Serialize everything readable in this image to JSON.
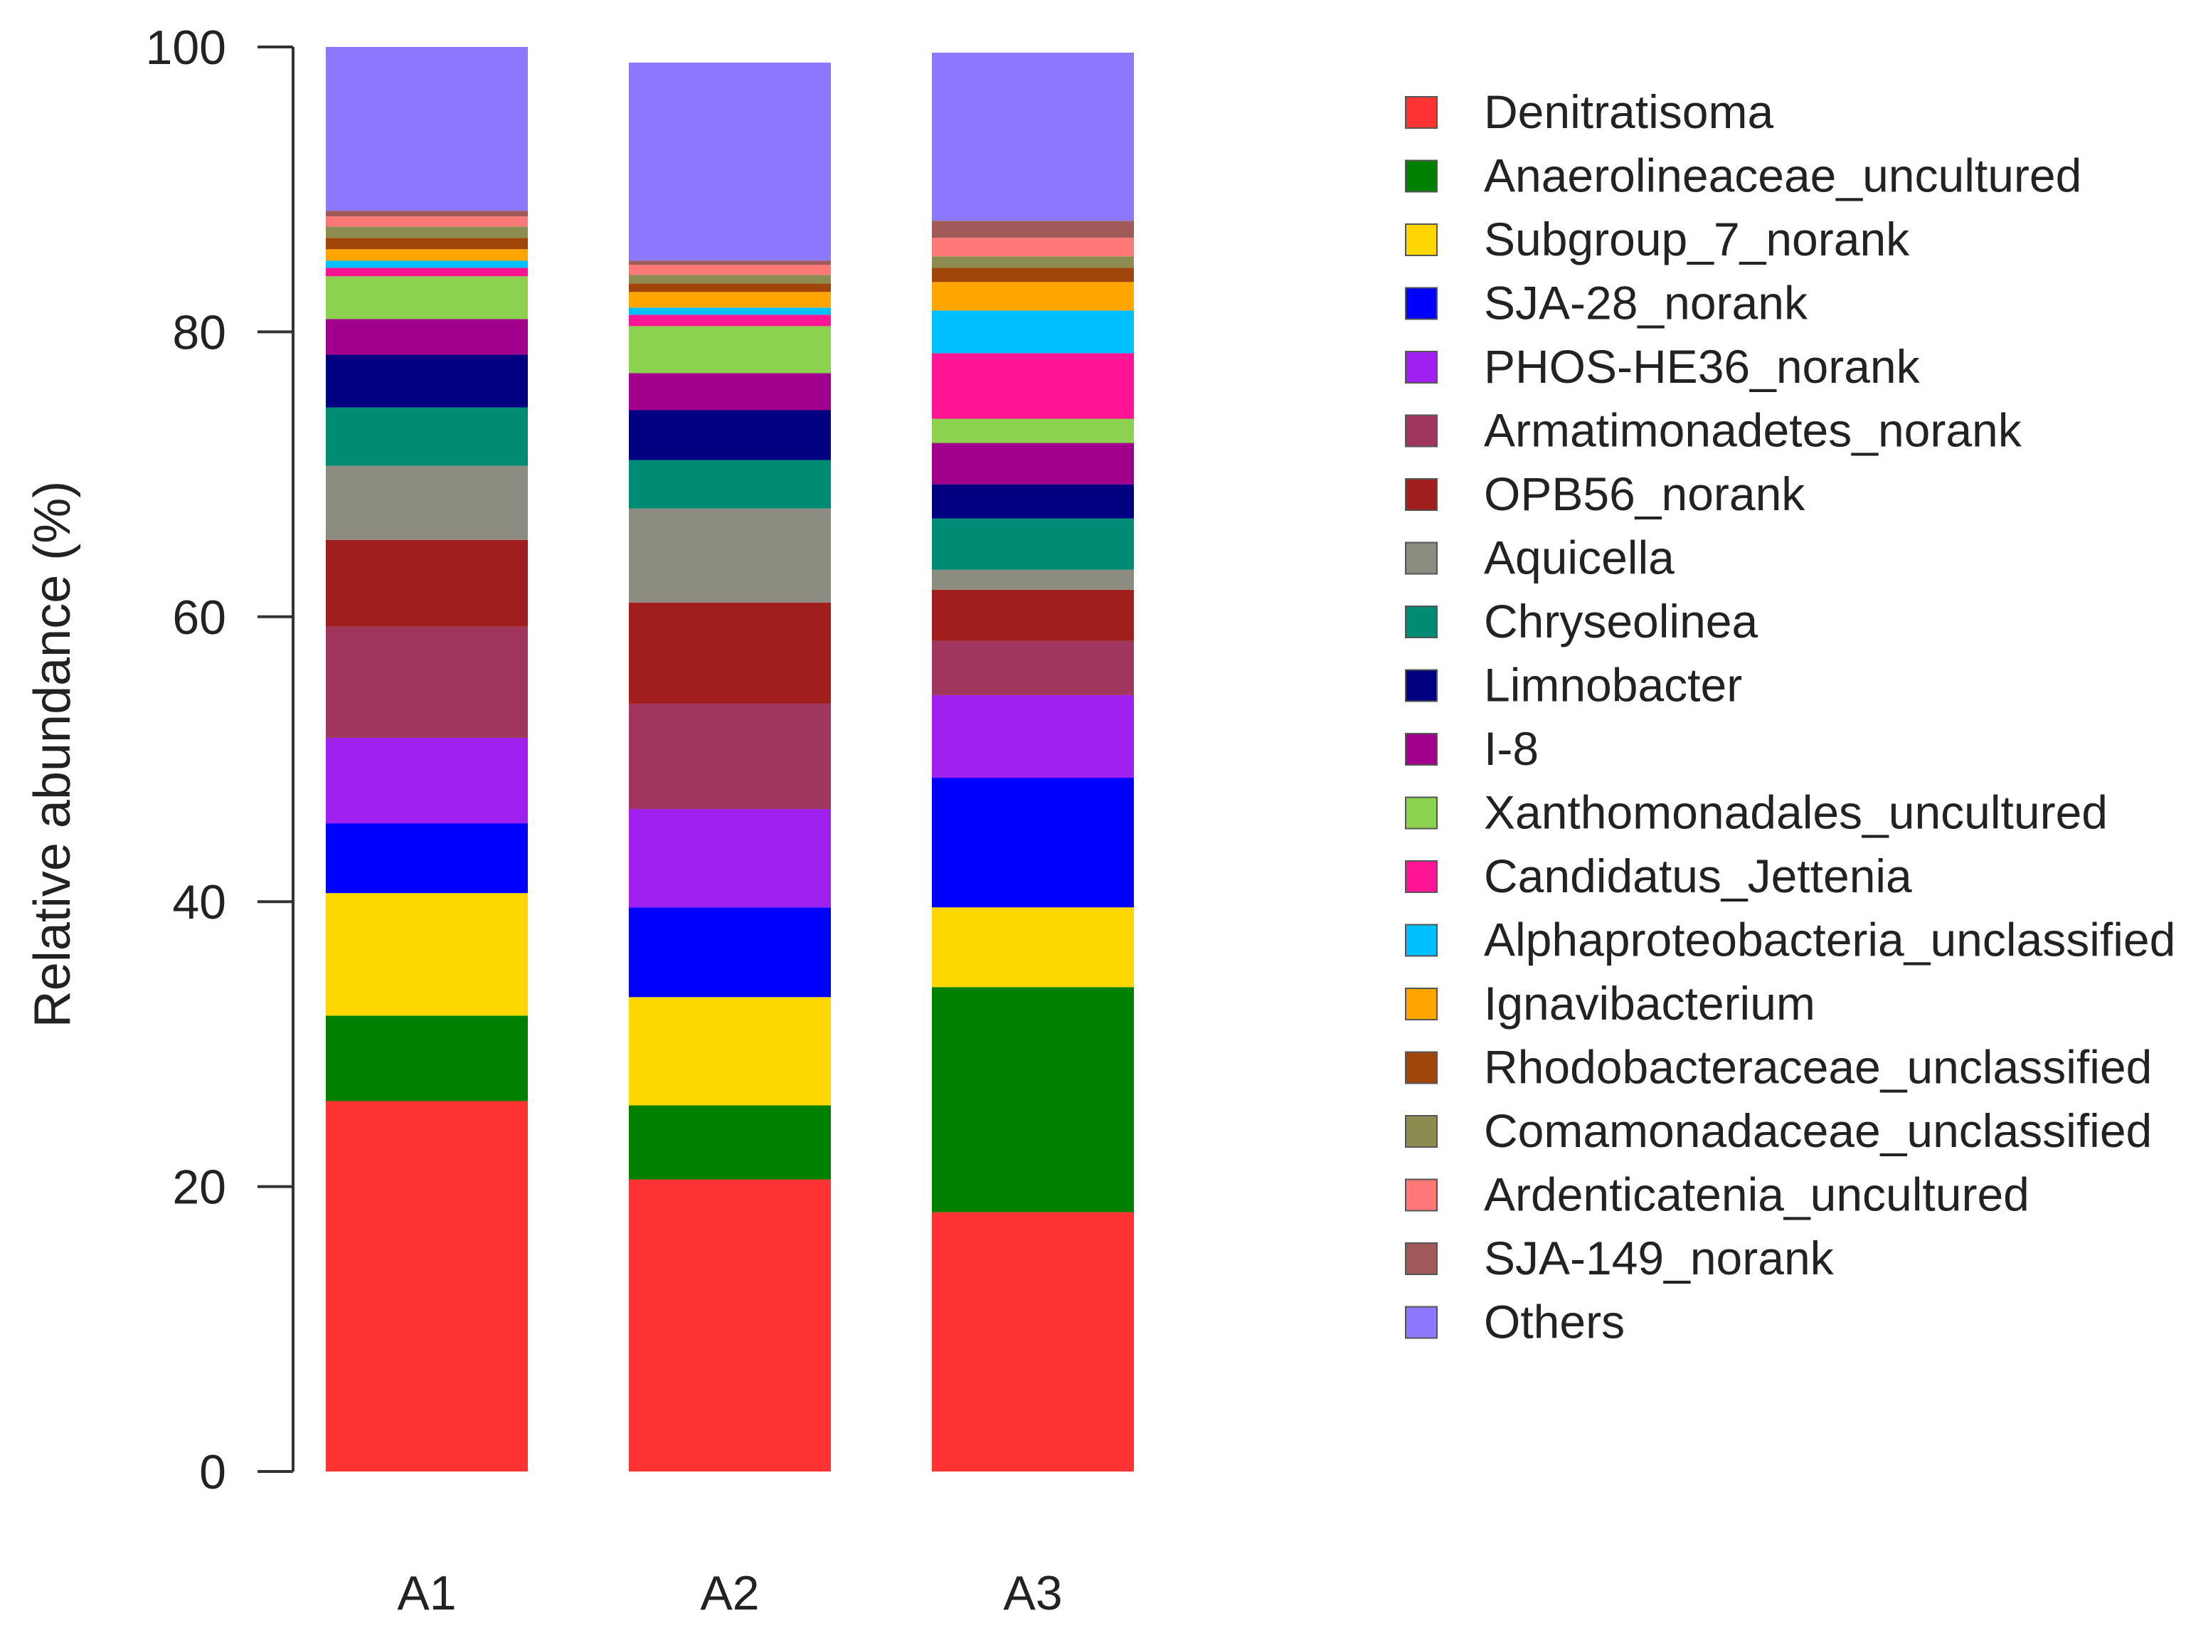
{
  "chart_data": {
    "type": "bar",
    "stacked": true,
    "title": "",
    "xlabel": "",
    "ylabel": "Relative abundance (%)",
    "ylim": [
      0,
      100
    ],
    "yticks": [
      0,
      20,
      40,
      60,
      80,
      100
    ],
    "categories": [
      "A1",
      "A2",
      "A3"
    ],
    "legend_position": "right",
    "series": [
      {
        "name": "Denitratisoma",
        "color": "#FF3333",
        "values": [
          26.0,
          20.5,
          18.2
        ]
      },
      {
        "name": "Anaerolineaceae_uncultured",
        "color": "#008000",
        "values": [
          6.0,
          5.2,
          15.8
        ]
      },
      {
        "name": "Subgroup_7_norank",
        "color": "#FFD700",
        "values": [
          8.6,
          7.6,
          5.6
        ]
      },
      {
        "name": "SJA-28_norank",
        "color": "#0000FF",
        "values": [
          4.9,
          6.3,
          9.1
        ]
      },
      {
        "name": "PHOS-HE36_norank",
        "color": "#A020F0",
        "values": [
          6.0,
          6.9,
          5.8
        ]
      },
      {
        "name": "Armatimonadetes_norank",
        "color": "#A0365E",
        "values": [
          7.8,
          7.4,
          3.8
        ]
      },
      {
        "name": "OPB56_norank",
        "color": "#A01E1E",
        "values": [
          6.1,
          7.1,
          3.6
        ]
      },
      {
        "name": "Aquicella",
        "color": "#8C8C80",
        "values": [
          5.2,
          6.6,
          1.4
        ]
      },
      {
        "name": "Chryseolinea",
        "color": "#008B74",
        "values": [
          4.1,
          3.4,
          3.6
        ]
      },
      {
        "name": "Limnobacter",
        "color": "#000080",
        "values": [
          3.7,
          3.5,
          2.4
        ]
      },
      {
        "name": "I-8",
        "color": "#A0008C",
        "values": [
          2.5,
          2.6,
          2.9
        ]
      },
      {
        "name": "Xanthomonadales_uncultured",
        "color": "#8CD250",
        "values": [
          3.0,
          3.3,
          1.7
        ]
      },
      {
        "name": "Candidatus_Jettenia",
        "color": "#FF1493",
        "values": [
          0.6,
          0.8,
          4.6
        ]
      },
      {
        "name": "Alphaproteobacteria_unclassified",
        "color": "#00BFFF",
        "values": [
          0.5,
          0.5,
          3.0
        ]
      },
      {
        "name": "Ignavibacterium",
        "color": "#FFA500",
        "values": [
          0.8,
          1.1,
          2.0
        ]
      },
      {
        "name": "Rhodobacteraceae_unclassified",
        "color": "#A0460A",
        "values": [
          0.8,
          0.6,
          1.0
        ]
      },
      {
        "name": "Comamonadaceae_unclassified",
        "color": "#8C8C50",
        "values": [
          0.8,
          0.6,
          0.8
        ]
      },
      {
        "name": "Ardenticatenia_uncultured",
        "color": "#FF7878",
        "values": [
          0.7,
          0.7,
          1.3
        ]
      },
      {
        "name": "SJA-149_norank",
        "color": "#A05A5A",
        "values": [
          0.4,
          0.3,
          1.2
        ]
      },
      {
        "name": "Others",
        "color": "#8C78FF",
        "values": [
          11.5,
          13.9,
          11.8
        ]
      }
    ]
  }
}
